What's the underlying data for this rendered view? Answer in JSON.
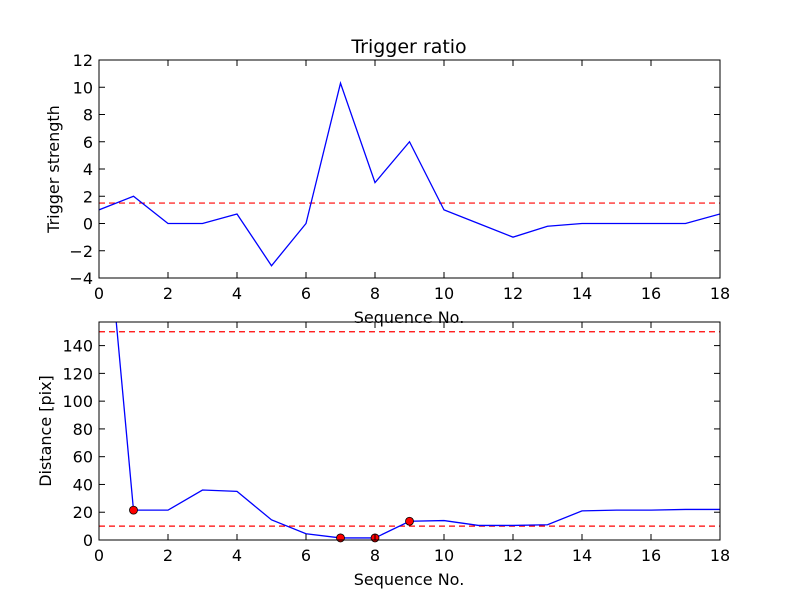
{
  "chart_data": [
    {
      "type": "line",
      "title": "Trigger ratio",
      "xlabel": "Sequence No.",
      "ylabel": "Trigger strength",
      "xlim": [
        0,
        18
      ],
      "ylim": [
        -4,
        12
      ],
      "xticks": [
        0,
        2,
        4,
        6,
        8,
        10,
        12,
        14,
        16,
        18
      ],
      "yticks": [
        -4,
        -2,
        0,
        2,
        4,
        6,
        8,
        10,
        12
      ],
      "ytick_labels": [
        "−4",
        "−2",
        "0",
        "2",
        "4",
        "6",
        "8",
        "10",
        "12"
      ],
      "grid": false,
      "series": [
        {
          "color": "#0000ff",
          "x": [
            0,
            1,
            2,
            3,
            4,
            5,
            6,
            7,
            8,
            9,
            10,
            11,
            12,
            13,
            14,
            15,
            16,
            17,
            18
          ],
          "y": [
            1.0,
            2.0,
            0.0,
            0.0,
            0.7,
            -3.1,
            0.0,
            10.3,
            3.0,
            6.0,
            1.0,
            0.0,
            -1.0,
            -0.2,
            0.0,
            0.0,
            0.0,
            0.0,
            0.7
          ]
        }
      ],
      "hlines": [
        {
          "y": 1.5,
          "color": "#ff0000",
          "style": "dashed"
        }
      ]
    },
    {
      "type": "line",
      "title": "",
      "xlabel": "Sequence No.",
      "ylabel": "Distance [pix]",
      "xlim": [
        0,
        18
      ],
      "ylim": [
        0,
        157
      ],
      "xticks": [
        0,
        2,
        4,
        6,
        8,
        10,
        12,
        14,
        16,
        18
      ],
      "yticks": [
        0,
        20,
        40,
        60,
        80,
        100,
        120,
        140
      ],
      "ytick_labels": [
        "0",
        "20",
        "40",
        "60",
        "80",
        "100",
        "120",
        "140"
      ],
      "grid": false,
      "series": [
        {
          "color": "#0000ff",
          "x": [
            0.5,
            1,
            2,
            3,
            4,
            5,
            6,
            7,
            8,
            9,
            10,
            11,
            12,
            13,
            14,
            15,
            16,
            17,
            18
          ],
          "y": [
            157,
            21.5,
            21.5,
            36,
            35,
            14.5,
            4.5,
            1.5,
            1.5,
            13.5,
            14,
            10.5,
            10.5,
            11,
            21,
            21.5,
            21.5,
            22,
            22
          ]
        }
      ],
      "markers": {
        "color": "#ff0000",
        "x": [
          1,
          7,
          8,
          9
        ],
        "y": [
          21.5,
          1.5,
          1.5,
          13.5
        ]
      },
      "hlines": [
        {
          "y": 150,
          "color": "#ff0000",
          "style": "dashed"
        },
        {
          "y": 10,
          "color": "#ff0000",
          "style": "dashed"
        }
      ]
    }
  ]
}
